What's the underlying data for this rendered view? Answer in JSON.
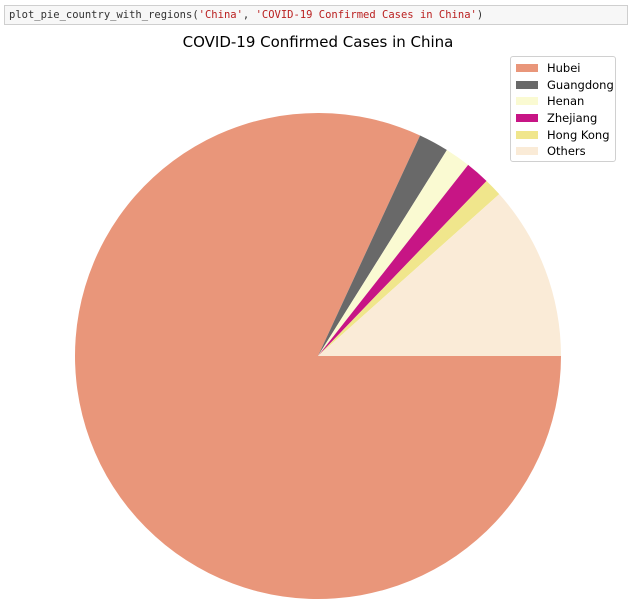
{
  "code_cell": {
    "func": "plot_pie_country_with_regions(",
    "arg1": "'China'",
    "sep": ", ",
    "arg2": "'COVID-19 Confirmed Cases in China'",
    "close": ")"
  },
  "chart_data": {
    "type": "pie",
    "title": "COVID-19 Confirmed Cases in China",
    "labels": [
      "Hubei",
      "Guangdong",
      "Henan",
      "Zhejiang",
      "Hong Kong",
      "Others"
    ],
    "values": [
      81.9,
      2.0,
      1.7,
      1.6,
      1.2,
      11.6
    ],
    "colors": [
      "#e9967a",
      "#696969",
      "#fafad2",
      "#c71585",
      "#f0e68c",
      "#faebd7"
    ],
    "start_angle_deg": 0,
    "direction": "clockwise",
    "legend_position": "top-right"
  }
}
